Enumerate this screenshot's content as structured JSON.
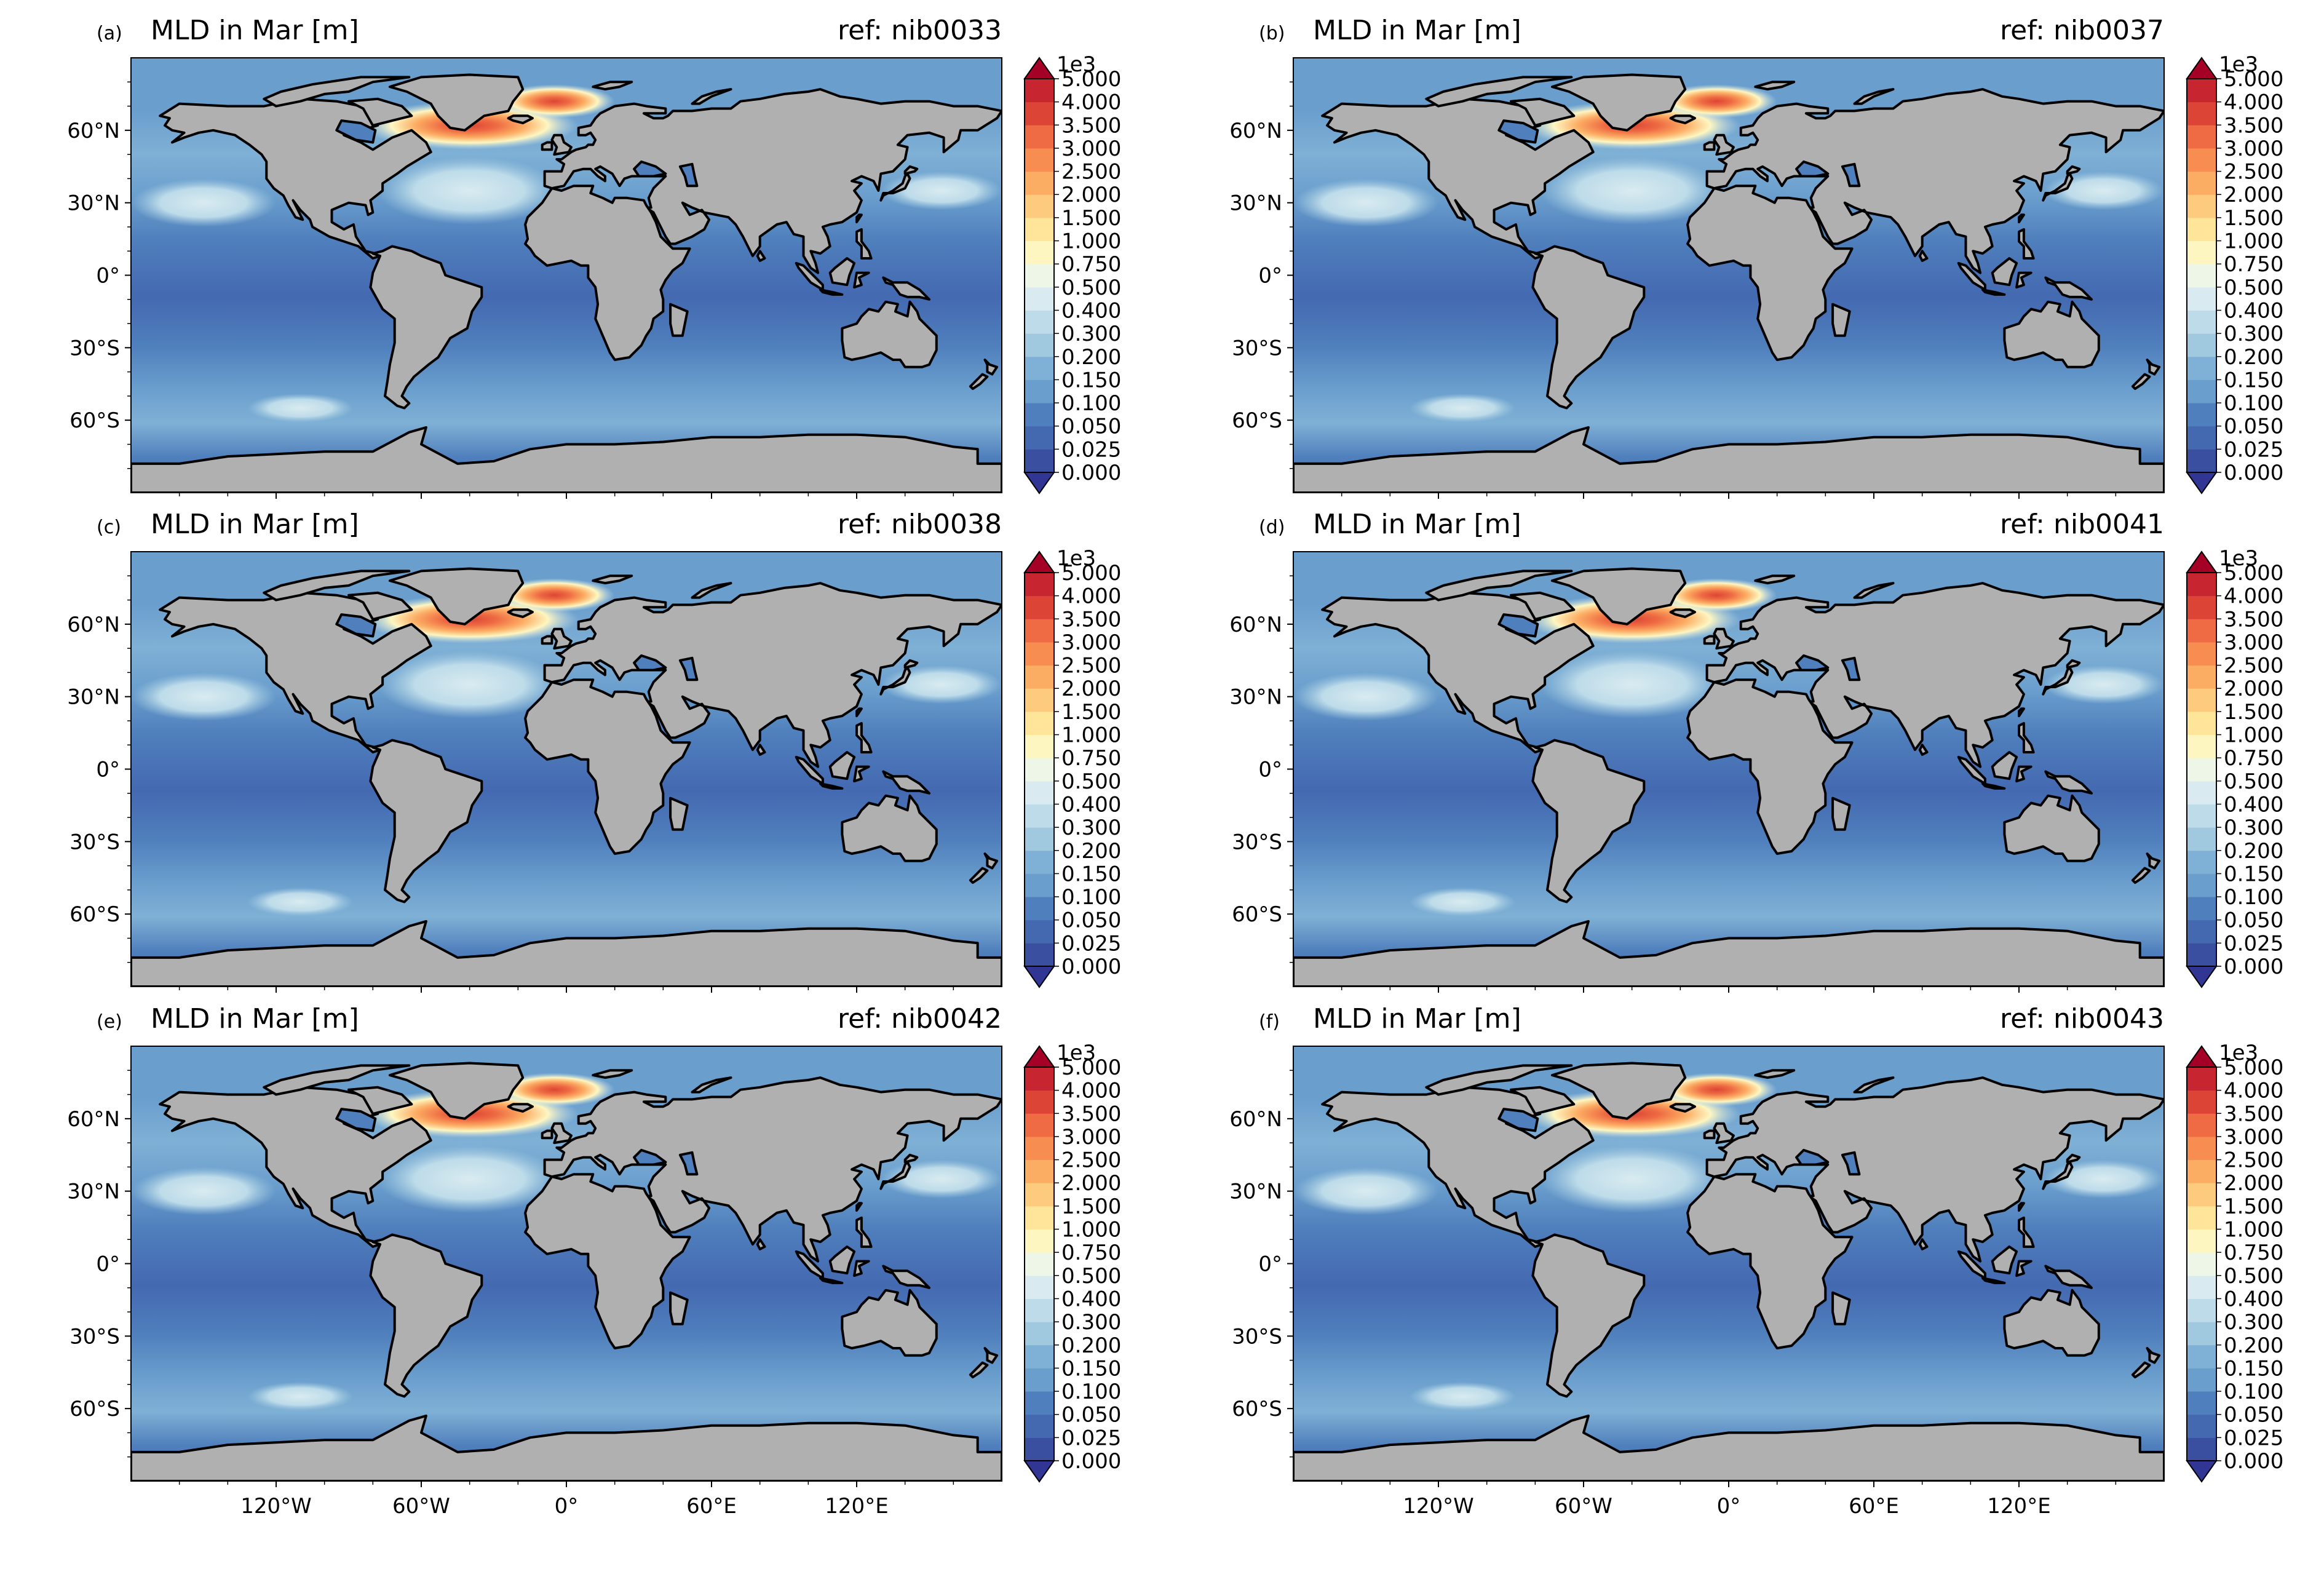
{
  "colorbar": {
    "offset_label": "1e3",
    "levels": [
      "0.000",
      "0.025",
      "0.050",
      "0.100",
      "0.150",
      "0.200",
      "0.300",
      "0.400",
      "0.500",
      "0.750",
      "1.000",
      "1.500",
      "2.000",
      "2.500",
      "3.000",
      "3.500",
      "4.000",
      "5.000"
    ],
    "colors": [
      "#3a4fa0",
      "#4469b1",
      "#4f7fbc",
      "#6a9ecd",
      "#7fb0d5",
      "#a0c9e0",
      "#bddbe9",
      "#d9ebf0",
      "#eef7e7",
      "#fdf6c1",
      "#fee59a",
      "#fdcb7d",
      "#fcad64",
      "#f88d52",
      "#ee6b43",
      "#dc4535",
      "#c72630"
    ],
    "under_color": "#313695",
    "over_color": "#a50026"
  },
  "map_colors": {
    "land": "#b0b0b0",
    "coast": "#000000"
  },
  "lon_ticks": [
    "120°W",
    "60°W",
    "0°",
    "60°E",
    "120°E"
  ],
  "lat_ticks": [
    "60°N",
    "30°N",
    "0°",
    "30°S",
    "60°S"
  ],
  "panels": [
    {
      "letter": "(a)",
      "title": "MLD in Mar [m]",
      "ref": "ref: nib0033"
    },
    {
      "letter": "(b)",
      "title": "MLD in Mar [m]",
      "ref": "ref: nib0037"
    },
    {
      "letter": "(c)",
      "title": "MLD in Mar [m]",
      "ref": "ref: nib0038"
    },
    {
      "letter": "(d)",
      "title": "MLD in Mar [m]",
      "ref": "ref: nib0041"
    },
    {
      "letter": "(e)",
      "title": "MLD in Mar [m]",
      "ref": "ref: nib0042"
    },
    {
      "letter": "(f)",
      "title": "MLD in Mar [m]",
      "ref": "ref: nib0043"
    }
  ],
  "chart_data": {
    "type": "heatmap",
    "variable": "MLD in Mar [m]",
    "units": "m",
    "colorbar_scale": "1e3",
    "x_axis": {
      "ticks": [
        -120,
        -60,
        0,
        60,
        120
      ],
      "labels": [
        "120°W",
        "60°W",
        "0°",
        "60°E",
        "120°E"
      ],
      "range": [
        -180,
        180
      ]
    },
    "y_axis": {
      "ticks": [
        60,
        30,
        0,
        -30,
        -60
      ],
      "labels": [
        "60°N",
        "30°N",
        "0°",
        "30°S",
        "60°S"
      ],
      "range": [
        -90,
        90
      ]
    },
    "colorbar_levels_1e3_m": [
      0,
      0.025,
      0.05,
      0.1,
      0.15,
      0.2,
      0.3,
      0.4,
      0.5,
      0.75,
      1.0,
      1.5,
      2.0,
      2.5,
      3.0,
      3.5,
      4.0,
      5.0
    ],
    "panels": [
      {
        "id": "a",
        "ref": "nib0033"
      },
      {
        "id": "b",
        "ref": "nib0037"
      },
      {
        "id": "c",
        "ref": "nib0038"
      },
      {
        "id": "d",
        "ref": "nib0041"
      },
      {
        "id": "e",
        "ref": "nib0042"
      },
      {
        "id": "f",
        "ref": "nib0043"
      }
    ]
  }
}
